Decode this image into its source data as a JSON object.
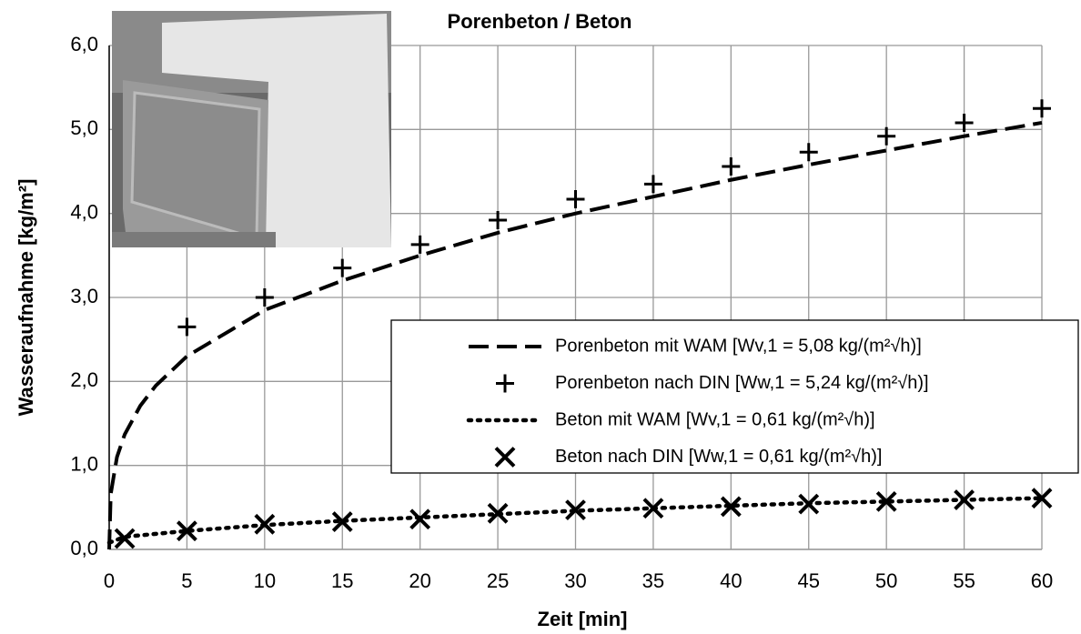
{
  "chart_data": {
    "type": "line",
    "title": "Porenbeton / Beton",
    "xlabel": "Zeit  [min]",
    "ylabel": "Wasseraufnahme [kg/m²]",
    "xlim": [
      0,
      60
    ],
    "ylim": [
      0,
      6
    ],
    "xticks": [
      0,
      5,
      10,
      15,
      20,
      25,
      30,
      35,
      40,
      45,
      50,
      55,
      60
    ],
    "yticks": [
      {
        "value": 0,
        "label": "0,0"
      },
      {
        "value": 1,
        "label": "1,0"
      },
      {
        "value": 2,
        "label": "2,0"
      },
      {
        "value": 3,
        "label": "3,0"
      },
      {
        "value": 4,
        "label": "4,0"
      },
      {
        "value": 5,
        "label": "5,0"
      },
      {
        "value": 6,
        "label": "6,0"
      }
    ],
    "grid": true,
    "legend": "lower right",
    "series": [
      {
        "name": "Porenbeton mit WAM [Wv,1 = 5,08 kg/(m²√h)]",
        "color": "#000000",
        "linestyle": "dashed",
        "marker": null,
        "x": [
          0,
          0.1,
          0.5,
          1,
          2,
          3,
          5,
          10,
          15,
          20,
          25,
          30,
          35,
          40,
          45,
          50,
          55,
          60
        ],
        "values": [
          0,
          0.66,
          1.1,
          1.37,
          1.71,
          1.95,
          2.3,
          2.85,
          3.2,
          3.5,
          3.77,
          4.0,
          4.2,
          4.4,
          4.58,
          4.75,
          4.92,
          5.08
        ]
      },
      {
        "name": "Porenbeton nach DIN [Ww,1 = 5,24 kg/(m²√h)]",
        "color": "#000000",
        "linestyle": null,
        "marker": "plus",
        "x": [
          5,
          10,
          15,
          20,
          25,
          30,
          35,
          40,
          45,
          50,
          55,
          60
        ],
        "values": [
          2.65,
          3.0,
          3.35,
          3.63,
          3.92,
          4.17,
          4.35,
          4.56,
          4.73,
          4.92,
          5.08,
          5.25
        ]
      },
      {
        "name": "Beton mit WAM [Wv,1 = 0,61 kg/(m²√h)]",
        "color": "#000000",
        "linestyle": "dotted",
        "marker": null,
        "x": [
          0,
          1,
          5,
          10,
          15,
          20,
          25,
          30,
          35,
          40,
          45,
          50,
          55,
          60
        ],
        "values": [
          0.08,
          0.15,
          0.22,
          0.29,
          0.34,
          0.38,
          0.42,
          0.46,
          0.49,
          0.52,
          0.55,
          0.57,
          0.59,
          0.61
        ]
      },
      {
        "name": "Beton nach DIN [Ww,1 = 0,61 kg/(m²√h)]",
        "color": "#000000",
        "linestyle": null,
        "marker": "cross",
        "x": [
          1,
          5,
          10,
          15,
          20,
          25,
          30,
          35,
          40,
          45,
          50,
          55,
          60
        ],
        "values": [
          0.13,
          0.22,
          0.3,
          0.33,
          0.36,
          0.43,
          0.47,
          0.49,
          0.51,
          0.54,
          0.57,
          0.59,
          0.61
        ]
      }
    ]
  }
}
